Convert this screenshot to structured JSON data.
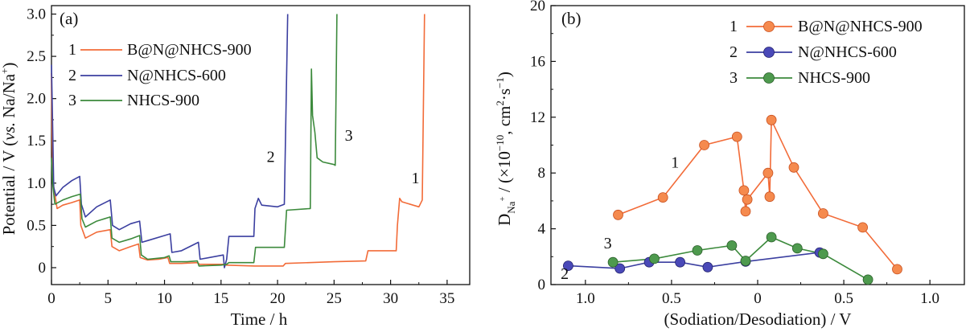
{
  "colors": {
    "s1": "#f26b38",
    "s2": "#3b3fa0",
    "s3": "#3c8a3c",
    "m1": "#f58a4e",
    "m2": "#4a49b8",
    "m3": "#4e9a4e"
  },
  "chart_data": [
    {
      "type": "line",
      "panel_label": "(a)",
      "xlabel": "Time / h",
      "ylabel_parts": [
        "Potential / V (",
        "vs.",
        " Na/Na",
        "+",
        ")"
      ],
      "xlim": [
        0,
        37
      ],
      "ylim": [
        -0.2,
        3.1
      ],
      "xticks": [
        0,
        5,
        10,
        15,
        20,
        25,
        30,
        35
      ],
      "xtick_labels": [
        "0",
        "5",
        "10",
        "15",
        "20",
        "25",
        "30",
        "35"
      ],
      "yticks": [
        0,
        0.5,
        1.0,
        1.5,
        2.0,
        2.5,
        3.0
      ],
      "ytick_labels": [
        "0",
        "0.5",
        "1.0",
        "1.5",
        "2.0",
        "2.5",
        "3.0"
      ],
      "legend": [
        {
          "num": "1",
          "name": "B@N@NHCS-900"
        },
        {
          "num": "2",
          "name": "N@NHCS-600"
        },
        {
          "num": "3",
          "name": "NHCS-900"
        }
      ],
      "annotations": [
        {
          "text": "1",
          "x": 32.2,
          "y": 1.0
        },
        {
          "text": "2",
          "x": 19.4,
          "y": 1.25
        },
        {
          "text": "3",
          "x": 26.3,
          "y": 1.5
        }
      ],
      "series": [
        {
          "name": "B@N@NHCS-900",
          "points": [
            [
              0,
              2.3
            ],
            [
              0.05,
              1.6
            ],
            [
              0.15,
              1.0
            ],
            [
              0.5,
              0.7
            ],
            [
              1.0,
              0.74
            ],
            [
              1.8,
              0.77
            ],
            [
              2.5,
              0.8
            ],
            [
              2.6,
              0.5
            ],
            [
              3.0,
              0.35
            ],
            [
              4.0,
              0.42
            ],
            [
              5.2,
              0.45
            ],
            [
              5.35,
              0.25
            ],
            [
              6.0,
              0.2
            ],
            [
              7.0,
              0.25
            ],
            [
              7.7,
              0.28
            ],
            [
              7.85,
              0.12
            ],
            [
              8.5,
              0.09
            ],
            [
              9.5,
              0.1
            ],
            [
              10.3,
              0.12
            ],
            [
              10.45,
              0.05
            ],
            [
              11.5,
              0.05
            ],
            [
              12.9,
              0.06
            ],
            [
              13.1,
              0.04
            ],
            [
              15.3,
              0.04
            ],
            [
              15.45,
              0.03
            ],
            [
              18.0,
              0.02
            ],
            [
              20.5,
              0.02
            ],
            [
              20.7,
              0.05
            ],
            [
              25.0,
              0.07
            ],
            [
              27.8,
              0.08
            ],
            [
              28.0,
              0.2
            ],
            [
              30.5,
              0.2
            ],
            [
              30.6,
              0.5
            ],
            [
              30.8,
              0.82
            ],
            [
              31.0,
              0.78
            ],
            [
              32.5,
              0.72
            ],
            [
              32.8,
              0.8
            ],
            [
              33.0,
              3.0
            ]
          ]
        },
        {
          "name": "N@NHCS-600",
          "points": [
            [
              0,
              2.4
            ],
            [
              0.1,
              1.7
            ],
            [
              0.2,
              0.95
            ],
            [
              0.4,
              0.85
            ],
            [
              1.0,
              0.95
            ],
            [
              1.8,
              1.03
            ],
            [
              2.5,
              1.08
            ],
            [
              2.65,
              0.75
            ],
            [
              3.0,
              0.6
            ],
            [
              4.0,
              0.72
            ],
            [
              5.2,
              0.8
            ],
            [
              5.4,
              0.5
            ],
            [
              6.0,
              0.45
            ],
            [
              7.0,
              0.52
            ],
            [
              7.8,
              0.55
            ],
            [
              8.0,
              0.3
            ],
            [
              8.5,
              0.32
            ],
            [
              10.0,
              0.38
            ],
            [
              10.5,
              0.4
            ],
            [
              10.65,
              0.18
            ],
            [
              11.5,
              0.2
            ],
            [
              13.0,
              0.3
            ],
            [
              13.15,
              0.1
            ],
            [
              15.2,
              0.15
            ],
            [
              15.3,
              0.0
            ],
            [
              15.5,
              0.1
            ],
            [
              15.7,
              0.37
            ],
            [
              17.9,
              0.37
            ],
            [
              18.0,
              0.7
            ],
            [
              18.3,
              0.82
            ],
            [
              18.6,
              0.74
            ],
            [
              20.0,
              0.72
            ],
            [
              20.6,
              0.75
            ],
            [
              20.9,
              3.0
            ]
          ]
        },
        {
          "name": "NHCS-900",
          "points": [
            [
              0,
              1.3
            ],
            [
              0.1,
              1.0
            ],
            [
              0.3,
              0.75
            ],
            [
              1.0,
              0.8
            ],
            [
              1.8,
              0.84
            ],
            [
              2.55,
              0.87
            ],
            [
              2.7,
              0.58
            ],
            [
              3.0,
              0.48
            ],
            [
              4.0,
              0.55
            ],
            [
              5.2,
              0.6
            ],
            [
              5.35,
              0.35
            ],
            [
              6.0,
              0.3
            ],
            [
              7.0,
              0.34
            ],
            [
              7.8,
              0.38
            ],
            [
              7.95,
              0.15
            ],
            [
              8.5,
              0.1
            ],
            [
              10.0,
              0.12
            ],
            [
              10.4,
              0.14
            ],
            [
              10.55,
              0.07
            ],
            [
              12.0,
              0.07
            ],
            [
              12.9,
              0.08
            ],
            [
              13.05,
              0.02
            ],
            [
              15.0,
              0.03
            ],
            [
              15.5,
              0.04
            ],
            [
              15.7,
              0.06
            ],
            [
              17.9,
              0.06
            ],
            [
              18.05,
              0.24
            ],
            [
              20.6,
              0.24
            ],
            [
              20.8,
              0.68
            ],
            [
              22.9,
              0.7
            ],
            [
              23.0,
              2.35
            ],
            [
              23.1,
              1.8
            ],
            [
              23.3,
              1.6
            ],
            [
              23.5,
              1.3
            ],
            [
              24.0,
              1.25
            ],
            [
              25.0,
              1.22
            ],
            [
              25.1,
              1.21
            ],
            [
              25.25,
              3.0
            ]
          ]
        }
      ]
    },
    {
      "type": "scatter",
      "panel_label": "(b)",
      "xlabel": "(Sodiation/Desodiation) / V",
      "ylabel_parts": [
        "D",
        "Na",
        "+",
        " / (×10",
        "−10",
        ", cm",
        "2",
        "·s",
        "−1",
        ")"
      ],
      "x_is_reversed_then_forward": true,
      "xlim": [
        -1.2,
        1.2
      ],
      "ylim": [
        0,
        20
      ],
      "xticks": [
        -1.0,
        -0.5,
        0.0,
        0.5,
        1.0
      ],
      "xtick_labels": [
        "1.0",
        "0.5",
        "0",
        "0.5",
        "1.0"
      ],
      "yticks": [
        0,
        4,
        8,
        12,
        16,
        20
      ],
      "ytick_labels": [
        "0",
        "4",
        "8",
        "12",
        "16",
        "20"
      ],
      "legend": [
        {
          "num": "1",
          "name": "B@N@NHCS-900"
        },
        {
          "num": "2",
          "name": "N@NHCS-600"
        },
        {
          "num": "3",
          "name": "NHCS-900"
        }
      ],
      "annotations": [
        {
          "text": "1",
          "x": -0.48,
          "y": 8.4
        },
        {
          "text": "2",
          "x": -1.12,
          "y": 0.4
        },
        {
          "text": "3",
          "x": -0.87,
          "y": 2.6
        }
      ],
      "series": [
        {
          "name": "B@N@NHCS-900",
          "points": [
            [
              -0.81,
              5.0
            ],
            [
              -0.55,
              6.25
            ],
            [
              -0.31,
              10.0
            ],
            [
              -0.12,
              10.6
            ],
            [
              -0.08,
              6.75
            ],
            [
              -0.07,
              5.25
            ],
            [
              -0.06,
              6.1
            ],
            [
              0.06,
              8.0
            ],
            [
              0.07,
              6.3
            ],
            [
              0.08,
              11.8
            ],
            [
              0.21,
              8.4
            ],
            [
              0.38,
              5.1
            ],
            [
              0.61,
              4.1
            ],
            [
              0.81,
              1.1
            ]
          ]
        },
        {
          "name": "N@NHCS-600",
          "points": [
            [
              -1.1,
              1.35
            ],
            [
              -0.8,
              1.15
            ],
            [
              -0.63,
              1.6
            ],
            [
              -0.45,
              1.6
            ],
            [
              -0.29,
              1.25
            ],
            [
              -0.07,
              1.65
            ],
            [
              0.36,
              2.3
            ]
          ]
        },
        {
          "name": "NHCS-900",
          "points": [
            [
              -0.84,
              1.6
            ],
            [
              -0.6,
              1.85
            ],
            [
              -0.35,
              2.45
            ],
            [
              -0.15,
              2.8
            ],
            [
              -0.07,
              1.7
            ],
            [
              0.08,
              3.4
            ],
            [
              0.23,
              2.6
            ],
            [
              0.38,
              2.2
            ],
            [
              0.64,
              0.35
            ]
          ]
        }
      ]
    }
  ]
}
